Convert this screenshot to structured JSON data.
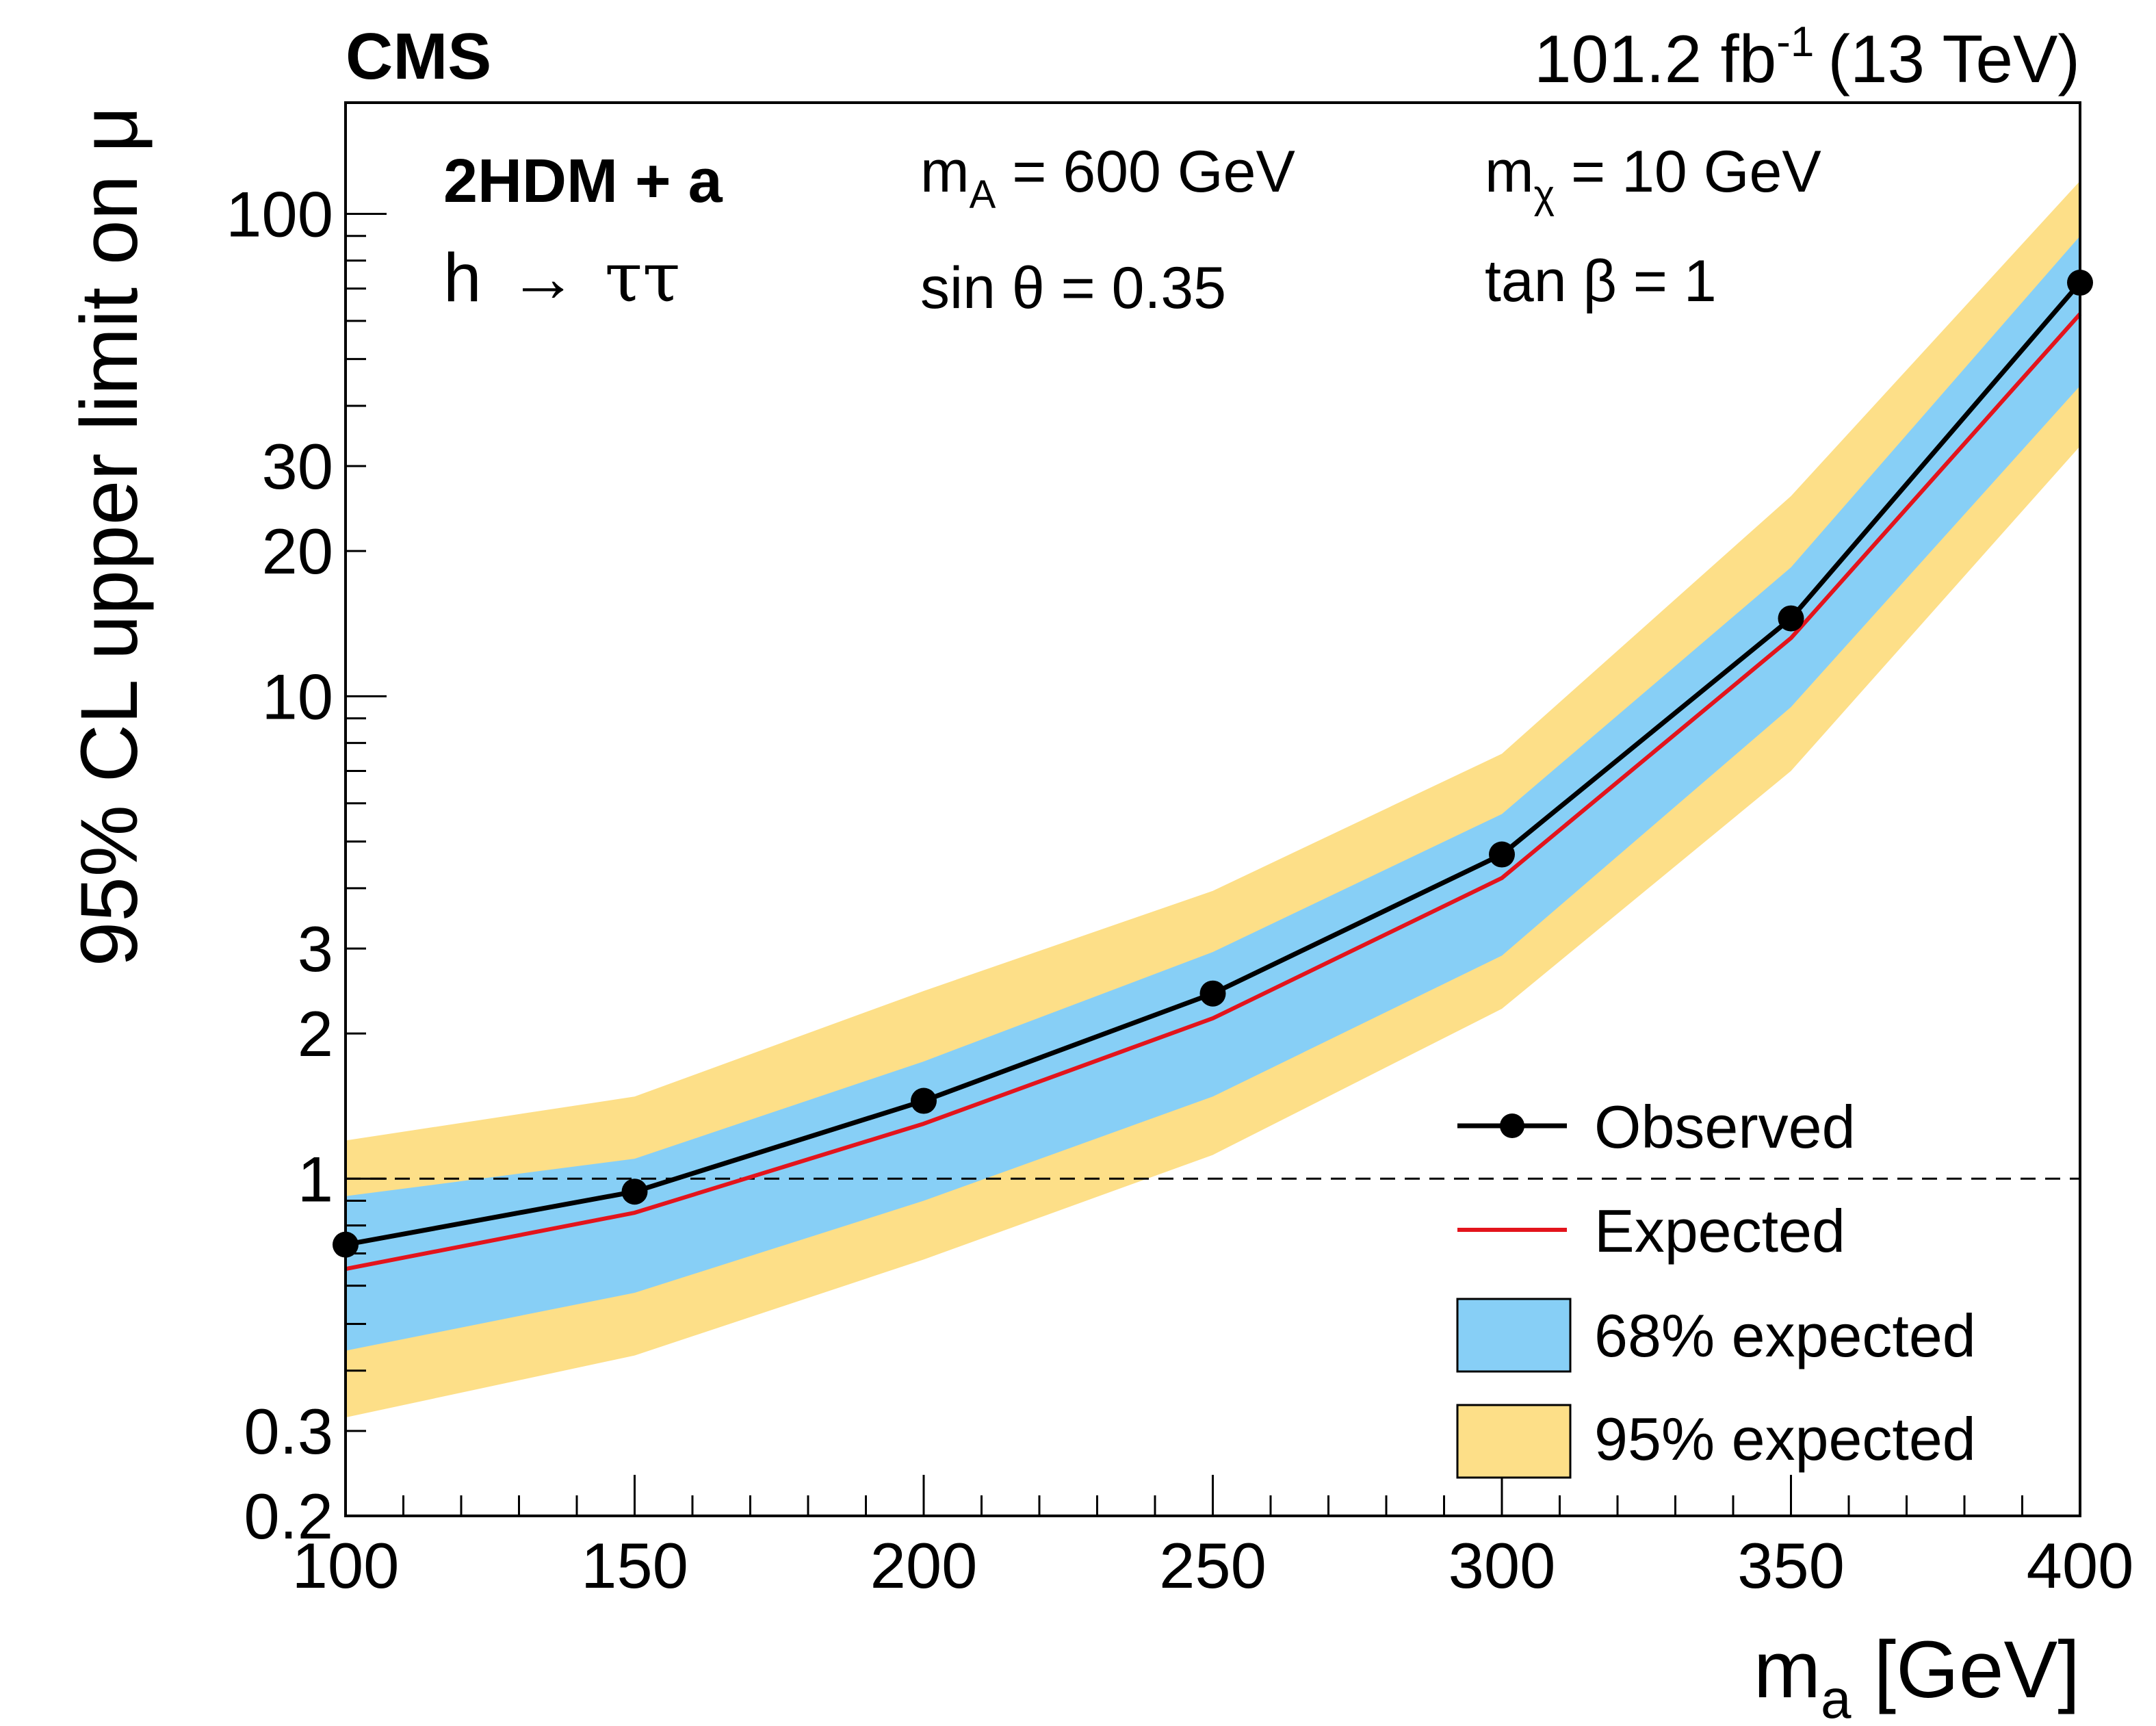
{
  "header": {
    "experiment": "CMS",
    "lumi_value": "101.2 fb",
    "lumi_exp": "-1",
    "energy": "(13 TeV)"
  },
  "annotations": {
    "model": "2HDM + a",
    "process_h": "h",
    "process_arrow": "→",
    "process_taus": "ττ",
    "mA_main": "m",
    "mA_sub": "A",
    "mA_rest": " = 600 GeV",
    "mchi_main": "m",
    "mchi_sub": "χ",
    "mchi_rest": " = 10 GeV",
    "sintheta": "sin θ = 0.35",
    "tanbeta": "tan β = 1"
  },
  "legend": {
    "observed": "Observed",
    "expected": "Expected",
    "band68": "68% expected",
    "band95": "95% expected"
  },
  "colors": {
    "observed": "#000000",
    "expected": "#e3141c",
    "band68": "#87cff6",
    "band95": "#fddf88",
    "reference_line": "#000000"
  },
  "chart_data": {
    "type": "line",
    "title": "",
    "xlabel_main": "m",
    "xlabel_sub": "a",
    "xlabel_rest": " [GeV]",
    "ylabel": "95% CL upper limit on μ",
    "x_scale": "linear",
    "y_scale": "log",
    "xlim": [
      100,
      400
    ],
    "ylim": [
      0.2,
      170
    ],
    "x_major_ticks": [
      100,
      150,
      200,
      250,
      300,
      350,
      400
    ],
    "x_tick_labels": [
      "100",
      "150",
      "200",
      "250",
      "300",
      "350",
      "400"
    ],
    "x_minor_step": 10,
    "y_tick_values": [
      0.2,
      0.3,
      1,
      2,
      3,
      10,
      20,
      30,
      100
    ],
    "y_tick_labels": [
      "0.2",
      "0.3",
      "1",
      "2",
      "3",
      "10",
      "20",
      "30",
      "100"
    ],
    "reference_line_y": 1,
    "x": [
      100,
      150,
      200,
      250,
      300,
      350,
      400
    ],
    "series": [
      {
        "name": "Observed",
        "values": [
          0.73,
          0.94,
          1.45,
          2.42,
          4.7,
          14.5,
          72
        ]
      },
      {
        "name": "Expected",
        "values": [
          0.65,
          0.85,
          1.3,
          2.15,
          4.2,
          13.2,
          62
        ]
      },
      {
        "name": "68% expected",
        "low": [
          0.44,
          0.58,
          0.9,
          1.48,
          2.9,
          9.5,
          44
        ],
        "high": [
          0.92,
          1.1,
          1.75,
          2.95,
          5.7,
          18.5,
          90
        ]
      },
      {
        "name": "95% expected",
        "low": [
          0.32,
          0.43,
          0.68,
          1.12,
          2.25,
          7.0,
          33
        ],
        "high": [
          1.2,
          1.48,
          2.45,
          3.95,
          7.6,
          26,
          117
        ]
      }
    ]
  }
}
